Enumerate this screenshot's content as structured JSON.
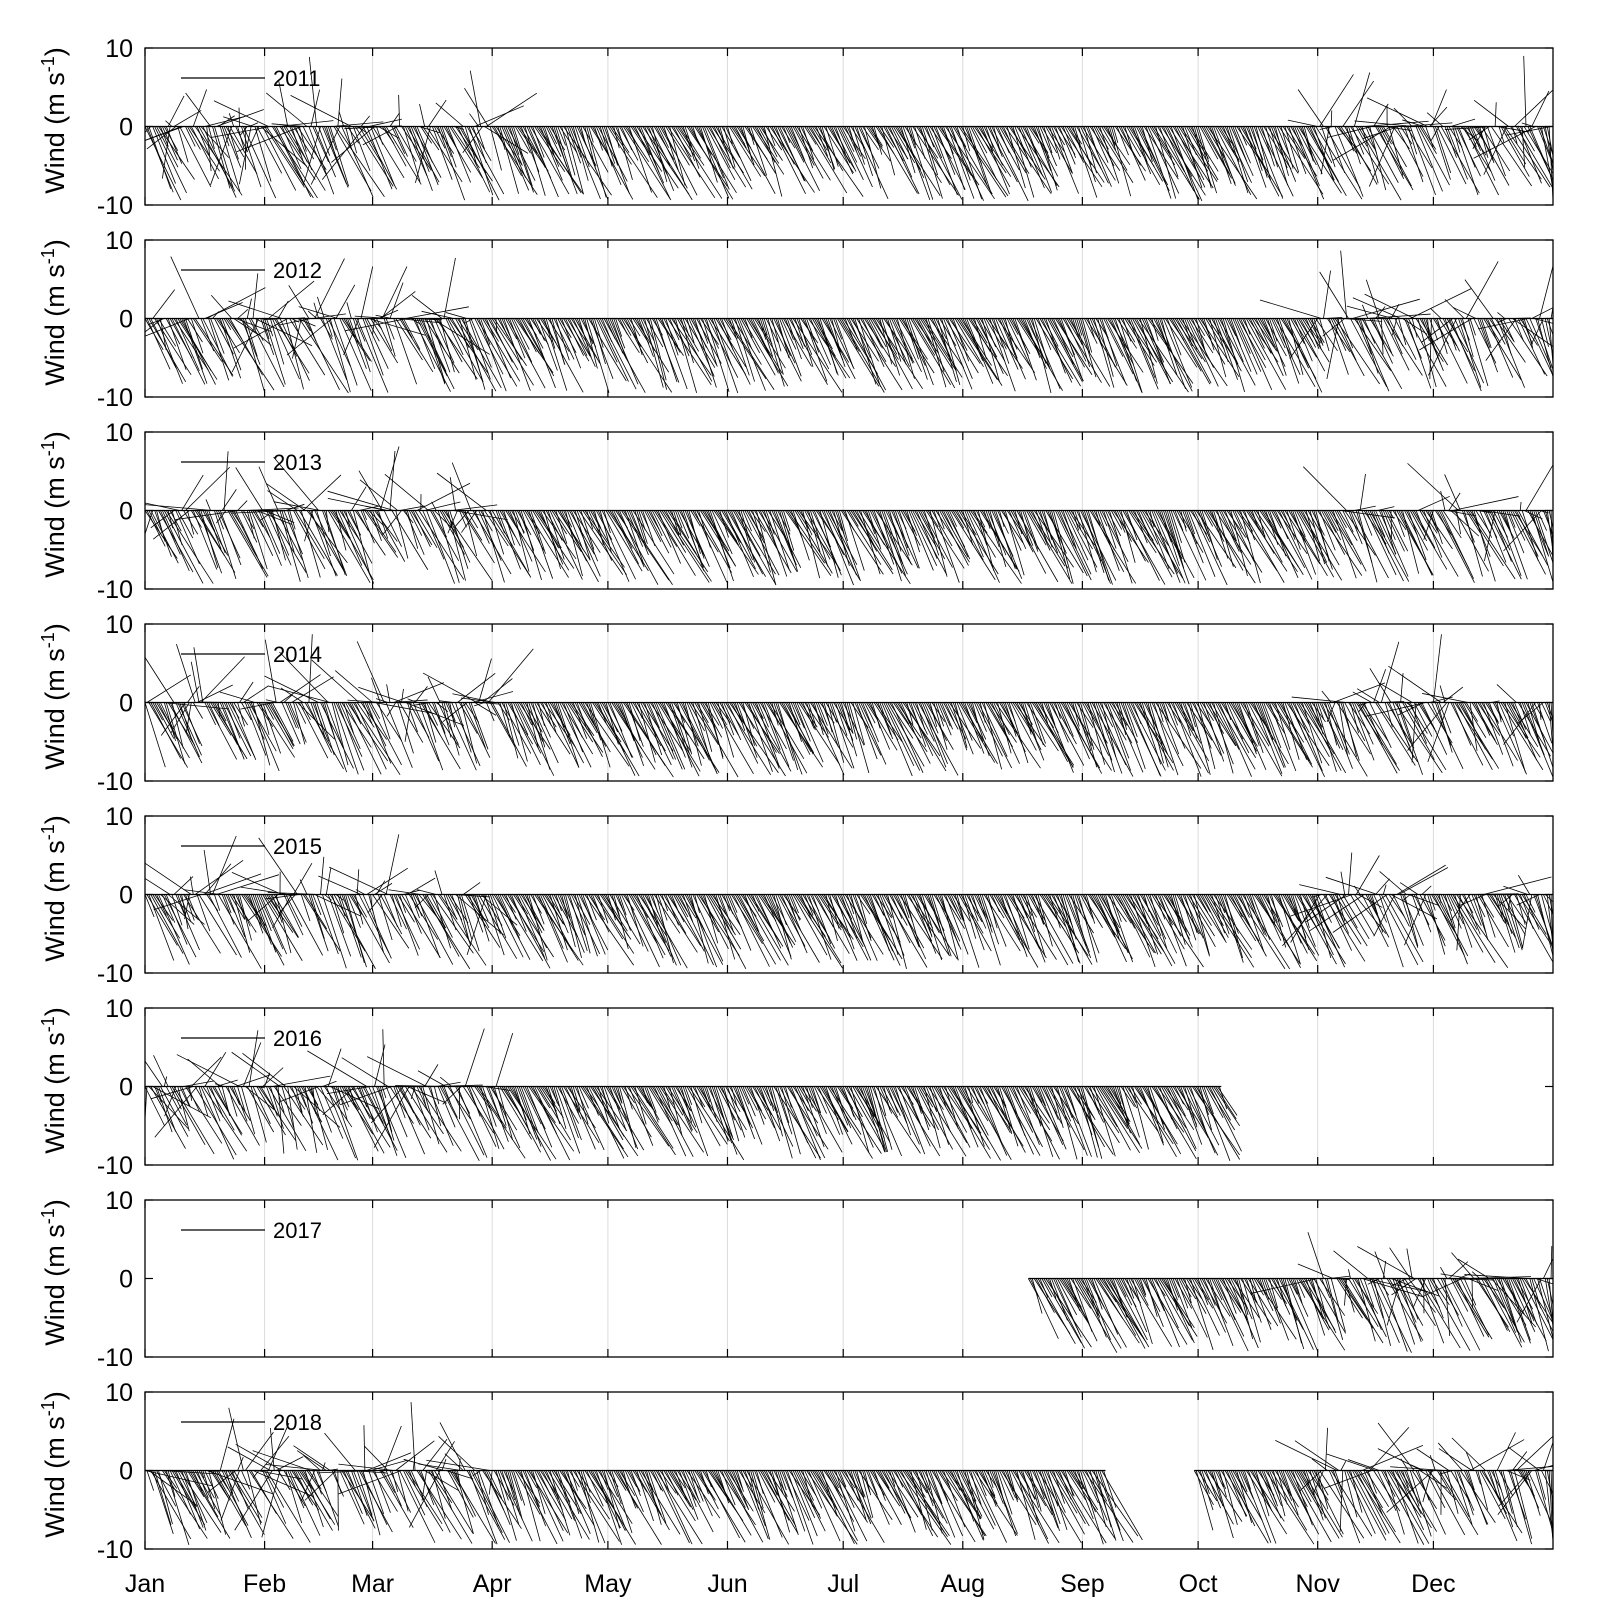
{
  "chart_data": {
    "type": "stick-plot",
    "ylabel_main": "Wind (m s",
    "ylabel_sup": "-1",
    "ylabel_close": ")",
    "ylim": [
      -10,
      10
    ],
    "y_ticks": [
      "10",
      "0",
      "-10"
    ],
    "x_ticks": [
      "Jan",
      "Feb",
      "Mar",
      "Apr",
      "May",
      "Jun",
      "Jul",
      "Aug",
      "Sep",
      "Oct",
      "Nov",
      "Dec"
    ],
    "x_tick_days": [
      0,
      31,
      59,
      90,
      120,
      151,
      181,
      212,
      243,
      273,
      304,
      334
    ],
    "x_range_days": [
      0,
      365
    ],
    "grid": "vertical monthly lines",
    "legend_placement": "top-left",
    "series_color": "#000000",
    "panels": [
      {
        "year": "2011",
        "coverage_days": [
          0,
          365
        ]
      },
      {
        "year": "2012",
        "coverage_days": [
          0,
          365
        ]
      },
      {
        "year": "2013",
        "coverage_days": [
          0,
          365
        ]
      },
      {
        "year": "2014",
        "coverage_days": [
          0,
          365
        ]
      },
      {
        "year": "2015",
        "coverage_days": [
          0,
          365
        ]
      },
      {
        "year": "2016",
        "coverage_days": [
          0,
          279
        ]
      },
      {
        "year": "2017",
        "coverage_days": [
          229,
          365
        ]
      },
      {
        "year": "2018",
        "coverage_days": [
          0,
          249
        ],
        "coverage_days_2": [
          272,
          365
        ]
      }
    ]
  }
}
